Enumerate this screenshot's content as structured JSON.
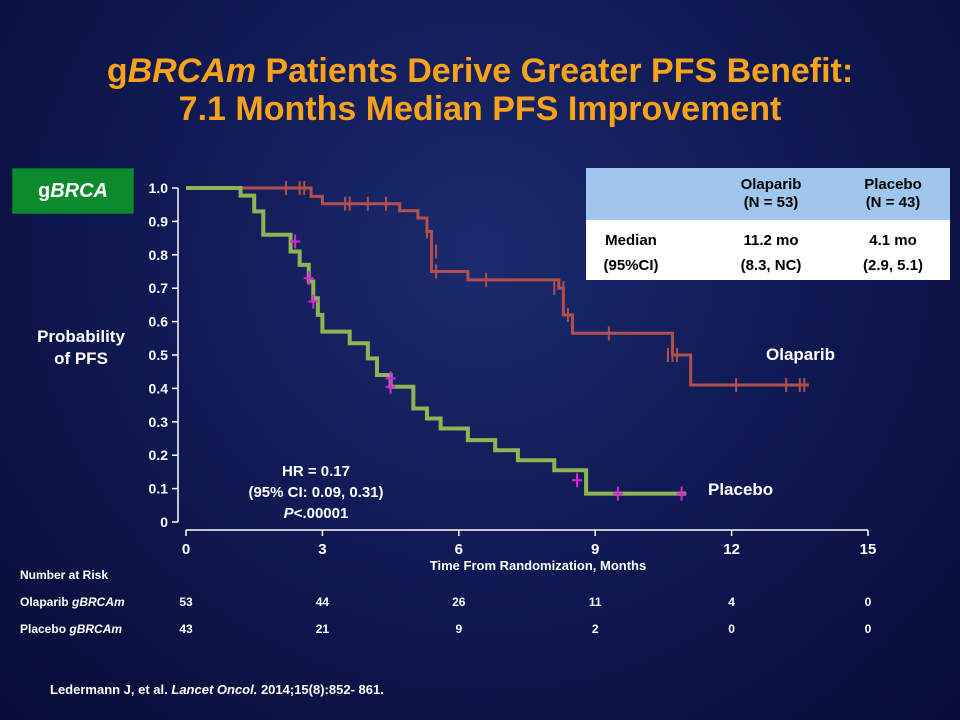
{
  "title": {
    "line1_prefix": "g",
    "line1_italic": "BRCAm",
    "line1_rest": " Patients Derive Greater PFS Benefit:",
    "line2": "7.1 Months Median PFS Improvement"
  },
  "badge": {
    "prefix": "g",
    "italic": "BRCA"
  },
  "ylabel": {
    "line1": "Probability",
    "line2": "of PFS"
  },
  "median_table": {
    "col1_name": "Olaparib",
    "col1_n": "(N = 53)",
    "col2_name": "Placebo",
    "col2_n": "(N = 43)",
    "row_label1": "Median",
    "row_label2": "(95%CI)",
    "col1_median": "11.2 mo",
    "col1_ci": "(8.3, NC)",
    "col2_median": "4.1 mo",
    "col2_ci": "(2.9, 5.1)"
  },
  "risk_table": {
    "heading": "Number at Risk",
    "rows": [
      {
        "prefix": "Olaparib ",
        "italic": "gBRCAm",
        "values": [
          "53",
          "44",
          "26",
          "11",
          "4",
          "0"
        ]
      },
      {
        "prefix": "Placebo ",
        "italic": "gBRCAm",
        "values": [
          "43",
          "21",
          "9",
          "2",
          "0",
          "0"
        ]
      }
    ]
  },
  "citation": {
    "prefix": "Ledermann J, et al. ",
    "journal": "Lancet Oncol.",
    "rest": " 2014;15(8):852- 861."
  },
  "colors": {
    "olaparib": "#b0504c",
    "placebo": "#8fb552",
    "censor_placebo": "#e020e0",
    "title": "#f7a21b",
    "badge": "#0c8a2e"
  },
  "chart_data": {
    "type": "line",
    "xlabel": "Time From Randomization, Months",
    "ylabel": "Probability of PFS",
    "xlim": [
      0,
      15
    ],
    "ylim": [
      0,
      1.0
    ],
    "xticks": [
      "0",
      "3",
      "6",
      "9",
      "12",
      "15"
    ],
    "yticks": [
      "0",
      "0.1",
      "0.2",
      "0.3",
      "0.4",
      "0.5",
      "0.6",
      "0.7",
      "0.8",
      "0.9",
      "1.0"
    ],
    "annotation": {
      "hr": "HR = 0.17",
      "ci": "(95% CI: 0.09, 0.31)",
      "p_italic": "P",
      "p_rest": "<.00001"
    },
    "series": [
      {
        "name": "Olaparib",
        "x": [
          0,
          2.75,
          2.75,
          3.0,
          3.0,
          4.7,
          4.7,
          5.1,
          5.1,
          5.3,
          5.3,
          5.4,
          5.4,
          6.2,
          6.2,
          8.2,
          8.2,
          8.3,
          8.3,
          8.5,
          8.5,
          10.7,
          10.7,
          11.1,
          11.1,
          13.7
        ],
        "y": [
          1.0,
          1.0,
          0.975,
          0.975,
          0.953,
          0.953,
          0.932,
          0.932,
          0.91,
          0.91,
          0.87,
          0.87,
          0.75,
          0.75,
          0.725,
          0.725,
          0.7,
          0.7,
          0.62,
          0.62,
          0.565,
          0.565,
          0.5,
          0.5,
          0.41,
          0.41
        ],
        "censor_x": [
          2.2,
          2.5,
          2.6,
          3.5,
          3.6,
          4.0,
          4.4,
          5.3,
          5.5,
          5.5,
          6.6,
          8.1,
          8.3,
          8.4,
          9.3,
          10.6,
          10.7,
          10.8,
          12.1,
          13.2,
          13.5,
          13.6
        ],
        "censor_y": [
          1.0,
          1.0,
          1.0,
          0.953,
          0.953,
          0.953,
          0.953,
          0.87,
          0.81,
          0.75,
          0.725,
          0.7,
          0.7,
          0.62,
          0.565,
          0.5,
          0.5,
          0.5,
          0.41,
          0.41,
          0.41,
          0.41
        ]
      },
      {
        "name": "Placebo",
        "x": [
          0,
          1.2,
          1.2,
          1.5,
          1.5,
          1.7,
          1.7,
          2.3,
          2.3,
          2.5,
          2.5,
          2.7,
          2.7,
          2.8,
          2.8,
          2.9,
          2.9,
          3.0,
          3.0,
          3.6,
          3.6,
          4.0,
          4.0,
          4.2,
          4.2,
          4.5,
          4.5,
          5.0,
          5.0,
          5.3,
          5.3,
          5.6,
          5.6,
          6.2,
          6.2,
          6.8,
          6.8,
          7.3,
          7.3,
          8.1,
          8.1,
          8.8,
          8.8,
          11.0
        ],
        "y": [
          1.0,
          1.0,
          0.977,
          0.977,
          0.93,
          0.93,
          0.86,
          0.86,
          0.81,
          0.81,
          0.77,
          0.77,
          0.72,
          0.72,
          0.67,
          0.67,
          0.62,
          0.62,
          0.57,
          0.57,
          0.535,
          0.535,
          0.49,
          0.49,
          0.44,
          0.44,
          0.405,
          0.405,
          0.34,
          0.34,
          0.31,
          0.31,
          0.28,
          0.28,
          0.245,
          0.245,
          0.215,
          0.215,
          0.185,
          0.185,
          0.155,
          0.155,
          0.085,
          0.085
        ],
        "censor_x": [
          2.4,
          2.7,
          2.8,
          4.5,
          4.5,
          8.6,
          9.5,
          10.9
        ],
        "censor_y": [
          0.84,
          0.73,
          0.66,
          0.43,
          0.405,
          0.125,
          0.085,
          0.085
        ]
      }
    ],
    "series_labels": [
      "Olaparib",
      "Placebo"
    ]
  }
}
